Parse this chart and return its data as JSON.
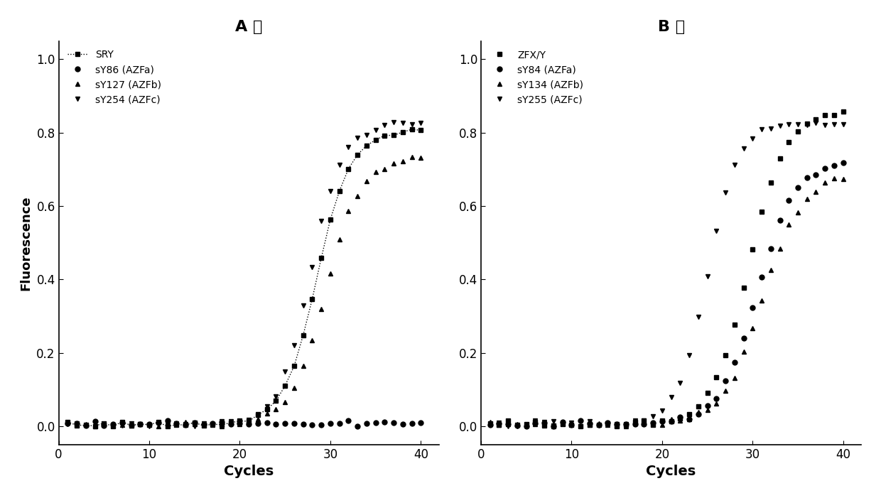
{
  "title_A": "A 组",
  "title_B": "B 组",
  "xlabel": "Cycles",
  "ylabel": "Fluorescence",
  "xlim": [
    0,
    42
  ],
  "ylim": [
    -0.05,
    1.05
  ],
  "xticks": [
    0,
    10,
    20,
    30,
    40
  ],
  "yticks": [
    0.0,
    0.2,
    0.4,
    0.6,
    0.8,
    1.0
  ],
  "background_color": "#ffffff",
  "panel_A": {
    "series": [
      {
        "label": "SRY",
        "marker": "s",
        "linestyle": "dotted",
        "color": "#000000",
        "ms": 5,
        "lw": 1.0
      },
      {
        "label": "sY86 (AZFa)",
        "marker": "o",
        "linestyle": "none",
        "color": "#000000",
        "ms": 5,
        "lw": 1.0
      },
      {
        "label": "sY127 (AZFb)",
        "marker": "^",
        "linestyle": "none",
        "color": "#000000",
        "ms": 5,
        "lw": 1.0
      },
      {
        "label": "sY254 (AZFc)",
        "marker": "v",
        "linestyle": "none",
        "color": "#000000",
        "ms": 5,
        "lw": 1.0
      }
    ]
  },
  "panel_B": {
    "series": [
      {
        "label": "ZFX/Y",
        "marker": "s",
        "linestyle": "none",
        "color": "#000000",
        "ms": 5,
        "lw": 1.0
      },
      {
        "label": "sY84 (AZFa)",
        "marker": "o",
        "linestyle": "none",
        "color": "#000000",
        "ms": 5,
        "lw": 1.0
      },
      {
        "label": "sY134 (AZFb)",
        "marker": "^",
        "linestyle": "none",
        "color": "#000000",
        "ms": 5,
        "lw": 1.0
      },
      {
        "label": "sY255 (AZFc)",
        "marker": "v",
        "linestyle": "none",
        "color": "#000000",
        "ms": 5,
        "lw": 1.0
      }
    ]
  }
}
